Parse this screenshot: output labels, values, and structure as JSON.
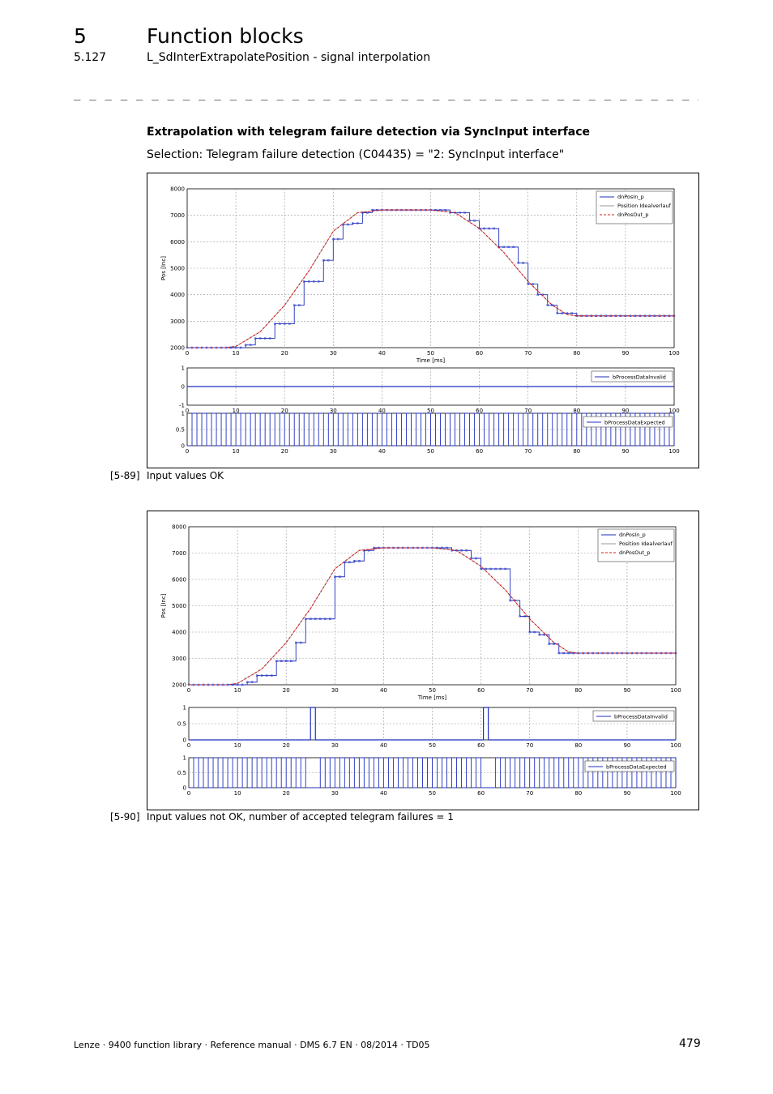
{
  "header": {
    "chapter_number": "5",
    "chapter_title": "Function blocks",
    "section_number": "5.127",
    "section_title": "L_SdInterExtrapolatePosition - signal interpolation",
    "divider": "_ _ _ _ _ _ _ _ _ _ _ _ _ _ _ _ _ _ _ _ _ _ _ _ _ _ _ _ _ _ _ _ _ _ _ _ _ _ _ _ _ _ _ _ _ _ _ _ _ _ _ _ _ _ _ _ _ _ _ _ _ _ _ _ _ _"
  },
  "content": {
    "subheading": "Extrapolation with telegram failure detection via SyncInput interface",
    "selection": "Selection: Telegram failure detection (C04435) = \"2: SyncInput interface\""
  },
  "figures": [
    {
      "caption_number": "[5-89]",
      "caption_text": "Input values OK",
      "pos_plot": {
        "ylabel": "Pos [Inc]",
        "xlabel": "Time [ms]",
        "y_ticks": [
          "2000",
          "3000",
          "4000",
          "5000",
          "6000",
          "7000",
          "8000"
        ],
        "x_ticks": [
          "0",
          "10",
          "20",
          "30",
          "40",
          "50",
          "60",
          "70",
          "80",
          "90",
          "100"
        ],
        "legend": [
          "dnPosIn_p",
          "Position Idealverlauf",
          "dnPosOut_p"
        ]
      },
      "invalid_plot": {
        "y_ticks": [
          "-1",
          "0",
          "1"
        ],
        "x_ticks": [
          "0",
          "10",
          "20",
          "30",
          "40",
          "50",
          "60",
          "70",
          "80",
          "90",
          "100"
        ],
        "legend": "bProcessDataInvalid"
      },
      "expected_plot": {
        "y_ticks": [
          "0",
          "0.5",
          "1"
        ],
        "x_ticks": [
          "0",
          "10",
          "20",
          "30",
          "40",
          "50",
          "60",
          "70",
          "80",
          "90",
          "100"
        ],
        "legend": "bProcessDataExpected"
      }
    },
    {
      "caption_number": "[5-90]",
      "caption_text": "Input values not OK, number of accepted telegram failures = 1",
      "pos_plot": {
        "ylabel": "Pos [Inc]",
        "xlabel": "Time [ms]",
        "y_ticks": [
          "2000",
          "3000",
          "4000",
          "5000",
          "6000",
          "7000",
          "8000"
        ],
        "x_ticks": [
          "0",
          "10",
          "20",
          "30",
          "40",
          "50",
          "60",
          "70",
          "80",
          "90",
          "100"
        ],
        "legend": [
          "dnPosIn_p",
          "Position Idealverlauf",
          "dnPosOut_p"
        ]
      },
      "invalid_plot": {
        "y_ticks": [
          "0",
          "0.5",
          "1"
        ],
        "x_ticks": [
          "0",
          "10",
          "20",
          "30",
          "40",
          "50",
          "60",
          "70",
          "80",
          "90",
          "100"
        ],
        "legend": "bProcessDataInvalid"
      },
      "expected_plot": {
        "y_ticks": [
          "0",
          "0.5",
          "1"
        ],
        "x_ticks": [
          "0",
          "10",
          "20",
          "30",
          "40",
          "50",
          "60",
          "70",
          "80",
          "90",
          "100"
        ],
        "legend": "bProcessDataExpected"
      }
    }
  ],
  "chart_data": [
    {
      "type": "line",
      "title": "Input values OK",
      "xlabel": "Time [ms]",
      "ylabel": "Pos [Inc]",
      "xlim": [
        0,
        100
      ],
      "ylim": [
        2000,
        8000
      ],
      "x": [
        0,
        8,
        10,
        15,
        20,
        25,
        30,
        35,
        40,
        45,
        50,
        55,
        60,
        65,
        70,
        75,
        78,
        80,
        90,
        100
      ],
      "series": [
        {
          "name": "Position Idealverlauf",
          "values": [
            2000,
            2000,
            2050,
            2600,
            3600,
            4900,
            6400,
            7100,
            7200,
            7200,
            7200,
            7100,
            6500,
            5600,
            4500,
            3600,
            3250,
            3200,
            3200,
            3200
          ]
        },
        {
          "name": "dnPosOut_p",
          "values": [
            2000,
            2000,
            2050,
            2600,
            3600,
            4900,
            6400,
            7100,
            7200,
            7200,
            7200,
            7100,
            6500,
            5600,
            4500,
            3600,
            3250,
            3200,
            3200,
            3200
          ]
        }
      ],
      "step_series": {
        "name": "dnPosIn_p",
        "x": [
          0,
          10,
          12,
          14,
          16,
          18,
          20,
          22,
          24,
          26,
          28,
          30,
          32,
          34,
          36,
          38,
          40,
          52,
          54,
          56,
          58,
          60,
          62,
          64,
          66,
          68,
          70,
          72,
          74,
          76,
          78,
          80,
          100
        ],
        "values": [
          2000,
          2000,
          2100,
          2350,
          2350,
          2900,
          2900,
          3600,
          4500,
          4500,
          5300,
          6100,
          6650,
          6700,
          7100,
          7200,
          7200,
          7200,
          7100,
          7100,
          6800,
          6500,
          6500,
          5800,
          5800,
          5200,
          4400,
          4000,
          3600,
          3300,
          3300,
          3200,
          3200
        ]
      },
      "invalid_signal": {
        "name": "bProcessDataInvalid",
        "ylim": [
          -1,
          1
        ],
        "value": 0
      },
      "expected_signal": {
        "name": "bProcessDataExpected",
        "ylim": [
          0,
          1
        ],
        "period_ms": 2,
        "high_ms": 1,
        "missing_pulses_at_ms": []
      }
    },
    {
      "type": "line",
      "title": "Input values not OK, number of accepted telegram failures = 1",
      "xlabel": "Time [ms]",
      "ylabel": "Pos [Inc]",
      "xlim": [
        0,
        100
      ],
      "ylim": [
        2000,
        8000
      ],
      "x": [
        0,
        8,
        10,
        15,
        20,
        25,
        30,
        35,
        40,
        45,
        50,
        55,
        60,
        65,
        70,
        75,
        78,
        80,
        90,
        100
      ],
      "series": [
        {
          "name": "Position Idealverlauf",
          "values": [
            2000,
            2000,
            2050,
            2600,
            3600,
            4900,
            6400,
            7100,
            7200,
            7200,
            7200,
            7100,
            6500,
            5600,
            4500,
            3600,
            3250,
            3200,
            3200,
            3200
          ]
        },
        {
          "name": "dnPosOut_p",
          "values": [
            2000,
            2000,
            2050,
            2600,
            3600,
            4900,
            6400,
            7100,
            7200,
            7200,
            7200,
            7100,
            6500,
            5600,
            4500,
            3600,
            3250,
            3200,
            3200,
            3200
          ]
        }
      ],
      "step_series": {
        "name": "dnPosIn_p",
        "x": [
          0,
          10,
          12,
          14,
          16,
          18,
          20,
          22,
          24,
          26,
          28,
          30,
          32,
          34,
          36,
          38,
          40,
          52,
          54,
          56,
          58,
          60,
          62,
          64,
          66,
          68,
          70,
          72,
          74,
          76,
          78,
          80,
          100
        ],
        "values": [
          2000,
          2000,
          2100,
          2350,
          2350,
          2900,
          2900,
          3600,
          4500,
          4500,
          4500,
          6100,
          6650,
          6700,
          7100,
          7200,
          7200,
          7200,
          7100,
          7100,
          6800,
          6400,
          6400,
          6400,
          5200,
          4600,
          4000,
          3900,
          3550,
          3200,
          3200,
          3200,
          3200
        ]
      },
      "invalid_signal": {
        "name": "bProcessDataInvalid",
        "ylim": [
          0,
          1
        ],
        "pulses_ms": [
          [
            25,
            26
          ],
          [
            60.5,
            61.5
          ]
        ]
      },
      "expected_signal": {
        "name": "bProcessDataExpected",
        "ylim": [
          0,
          1
        ],
        "period_ms": 2,
        "high_ms": 1,
        "missing_pulses_at_ms": [
          26,
          62
        ]
      }
    }
  ],
  "footer": {
    "text": "Lenze · 9400 function library · Reference manual · DMS 6.7 EN · 08/2014 · TD05",
    "page_number": "479"
  }
}
